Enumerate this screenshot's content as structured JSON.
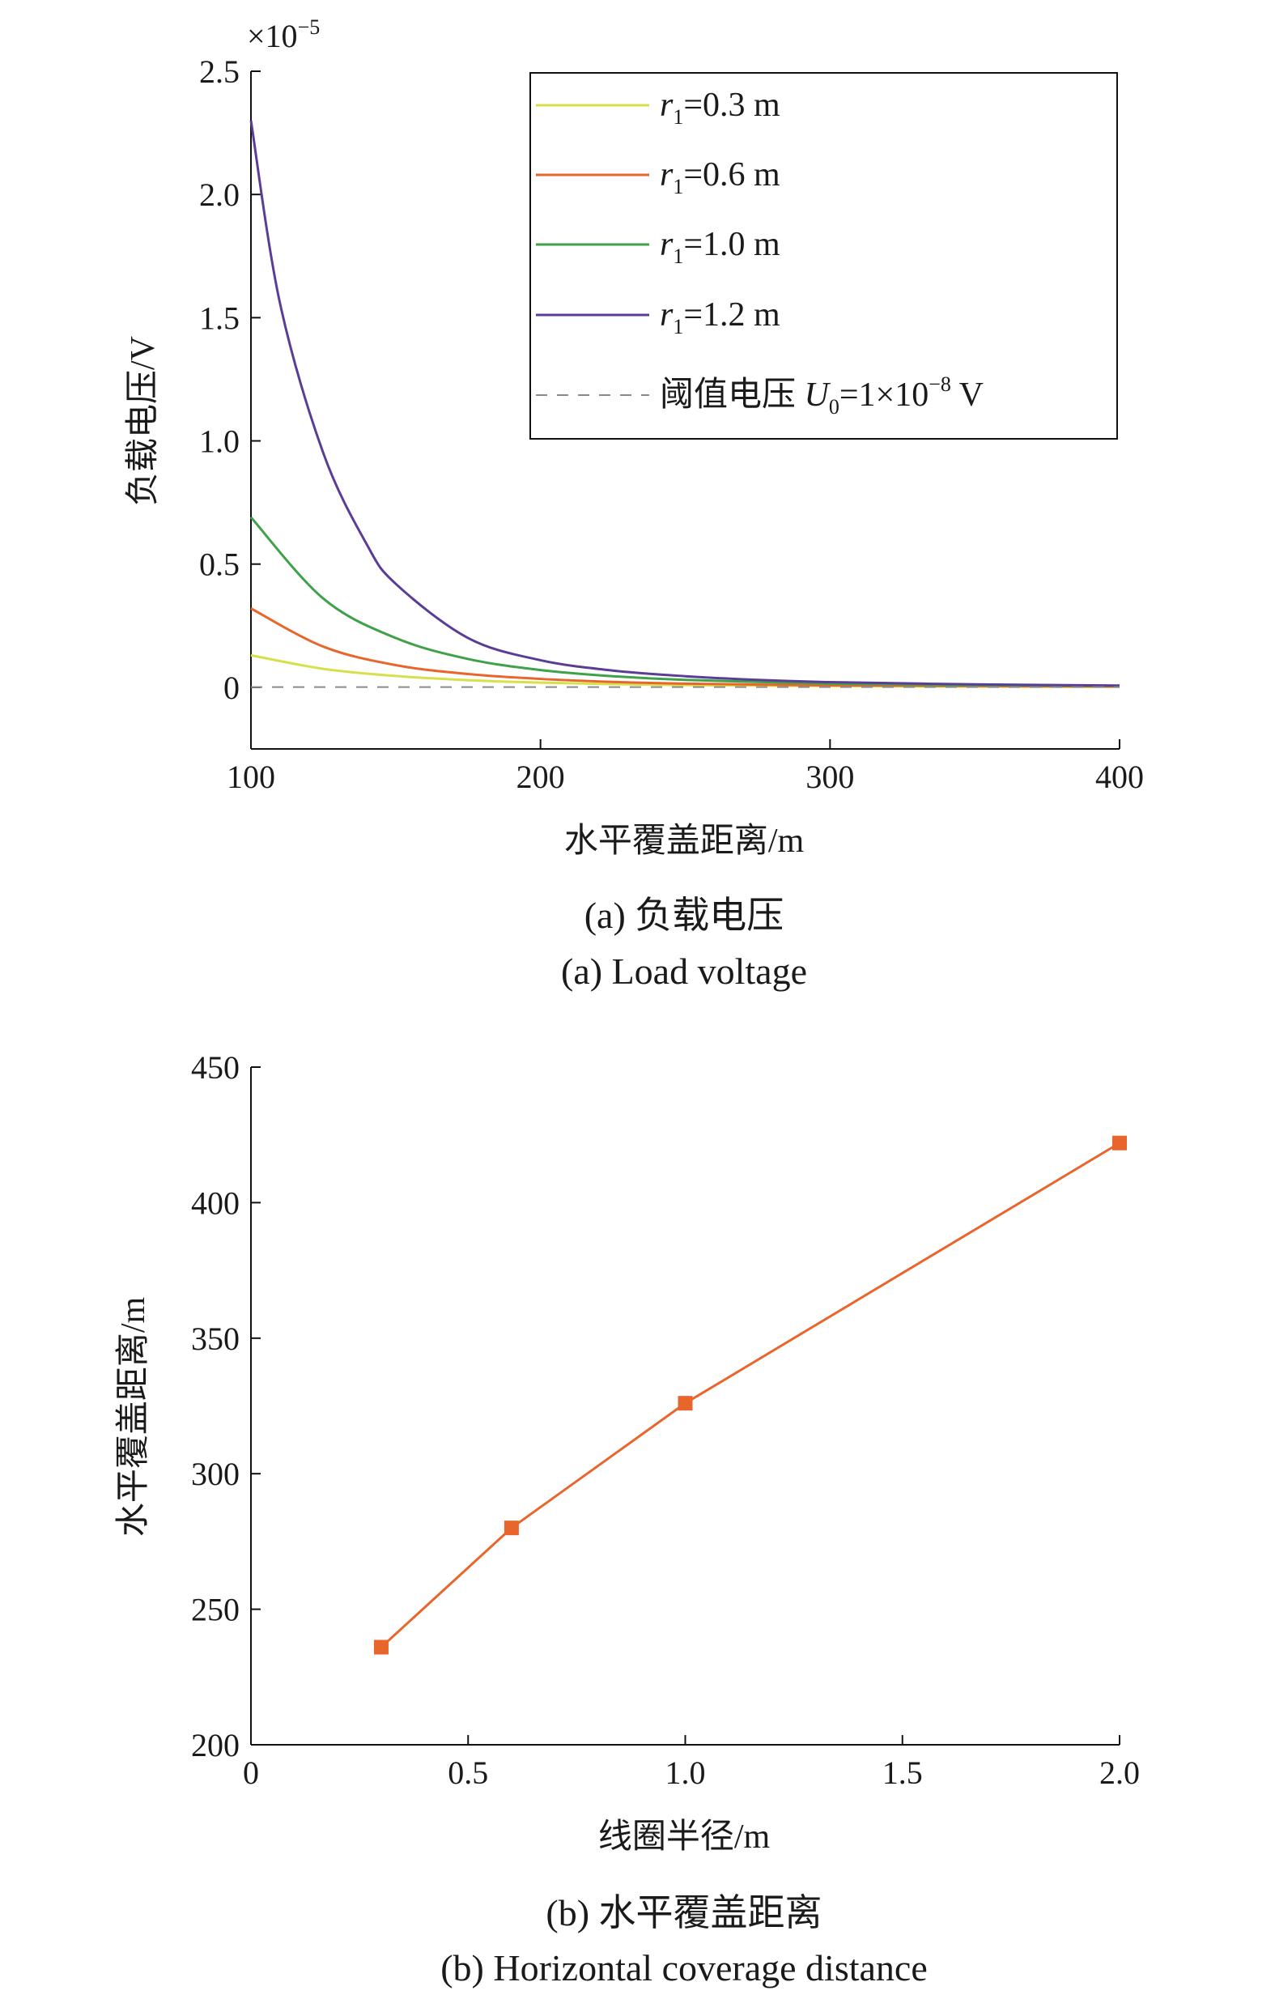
{
  "chart_data": [
    {
      "type": "line",
      "ylabel": "负载电压/V",
      "xlabel": "水平覆盖距离/m",
      "xlim": [
        100,
        400
      ],
      "ylim": [
        -0.25,
        2.5
      ],
      "y_scale_label_base": "×10",
      "y_scale_label_exp": "−5",
      "x_ticks": [
        100,
        200,
        300,
        400
      ],
      "x_tick_labels": [
        "100",
        "200",
        "300",
        "400"
      ],
      "y_ticks": [
        0,
        0.5,
        1.0,
        1.5,
        2.0,
        2.5
      ],
      "y_tick_labels": [
        "0",
        "0.5",
        "1.0",
        "1.5",
        "2.0",
        "2.5"
      ],
      "caption_cn": "(a) 负载电压",
      "caption_en": "(a) Load voltage",
      "legend_position": "top-right",
      "series": [
        {
          "name_var": "r",
          "name_sub": "1",
          "name_rest": "=0.3 m",
          "color": "#d7e04a",
          "x": [
            100,
            125,
            150,
            175,
            200,
            225,
            250,
            300,
            350,
            400
          ],
          "y": [
            0.13,
            0.075,
            0.046,
            0.029,
            0.019,
            0.013,
            0.009,
            0.005,
            0.003,
            0.002
          ]
        },
        {
          "name_var": "r",
          "name_sub": "1",
          "name_rest": "=0.6 m",
          "color": "#e8662c",
          "x": [
            100,
            125,
            150,
            175,
            200,
            225,
            250,
            300,
            350,
            400
          ],
          "y": [
            0.32,
            0.165,
            0.09,
            0.054,
            0.034,
            0.022,
            0.015,
            0.008,
            0.005,
            0.003
          ]
        },
        {
          "name_var": "r",
          "name_sub": "1",
          "name_rest": "=1.0 m",
          "color": "#3fa24a",
          "x": [
            100,
            125,
            150,
            175,
            200,
            225,
            250,
            300,
            350,
            400
          ],
          "y": [
            0.69,
            0.36,
            0.2,
            0.115,
            0.07,
            0.045,
            0.03,
            0.015,
            0.009,
            0.006
          ]
        },
        {
          "name_var": "r",
          "name_sub": "1",
          "name_rest": "=1.2 m",
          "color": "#5b3c96",
          "x": [
            100,
            110,
            125,
            140,
            150,
            175,
            200,
            225,
            250,
            275,
            300,
            350,
            400
          ],
          "y": [
            2.3,
            1.56,
            0.95,
            0.58,
            0.42,
            0.2,
            0.11,
            0.068,
            0.045,
            0.03,
            0.021,
            0.012,
            0.007
          ]
        },
        {
          "name_cn": "阈值电压 ",
          "name_var": "U",
          "name_sub": "0",
          "name_rest": "=1×10",
          "name_sup": "−8",
          "name_unit": " V",
          "color": "#8a8a8a",
          "dashed": true,
          "x": [
            100,
            400
          ],
          "y": [
            0.001,
            0.001
          ]
        }
      ]
    },
    {
      "type": "line",
      "ylabel": "水平覆盖距离/m",
      "xlabel": "线圈半径/m",
      "xlim": [
        0,
        2.0
      ],
      "ylim": [
        200,
        450
      ],
      "x_ticks": [
        0,
        0.5,
        1.0,
        1.5,
        2.0
      ],
      "x_tick_labels": [
        "0",
        "0.5",
        "1.0",
        "1.5",
        "2.0"
      ],
      "y_ticks": [
        200,
        250,
        300,
        350,
        400,
        450
      ],
      "y_tick_labels": [
        "200",
        "250",
        "300",
        "350",
        "400",
        "450"
      ],
      "caption_cn": "(b) 水平覆盖距离",
      "caption_en": "(b) Horizontal coverage distance",
      "series": [
        {
          "color": "#e8662c",
          "marker": "square",
          "x": [
            0.3,
            0.6,
            1.0,
            2.0
          ],
          "y": [
            236,
            280,
            326,
            422
          ]
        }
      ]
    }
  ]
}
